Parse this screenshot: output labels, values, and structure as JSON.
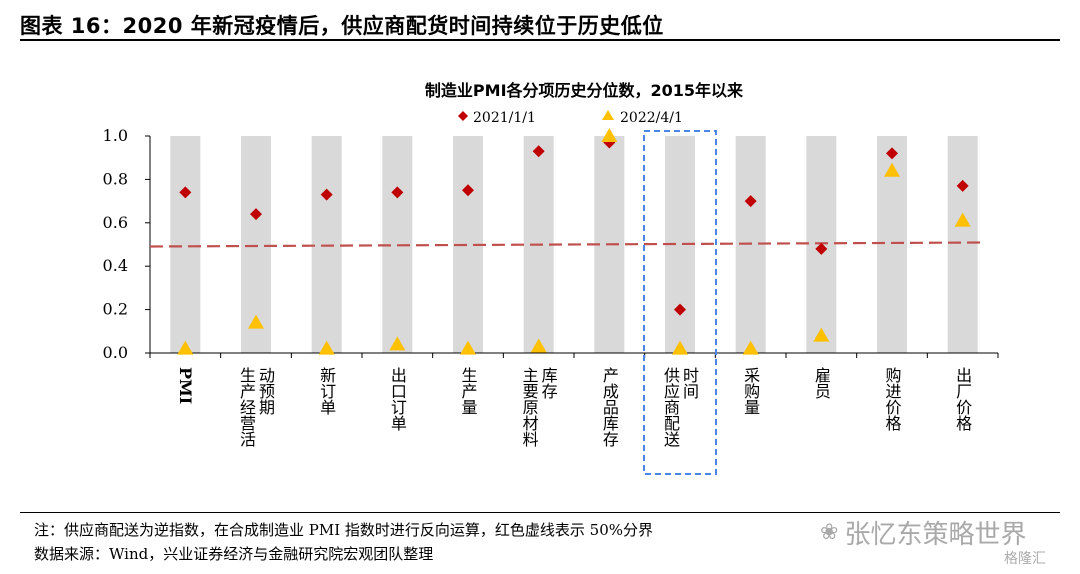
{
  "figure": {
    "title": "图表 16：2020 年新冠疫情后，供应商配货时间持续位于历史低位"
  },
  "notes": {
    "note": "注：供应商配送为逆指数，在合成制造业 PMI 指数时进行反向运算，红色虚线表示 50%分界",
    "source": "数据来源：Wind，兴业证券经济与金融研究院宏观团队整理"
  },
  "watermark": {
    "icon": "wechat-icon",
    "text": "张忆东策略世界",
    "text2": "格隆汇"
  },
  "chart_data": {
    "type": "scatter",
    "title": "制造业PMI各分项历史分位数，2015年以来",
    "ylim": [
      0,
      1
    ],
    "yticks": [
      "0.0",
      "0.2",
      "0.4",
      "0.6",
      "0.8",
      "1.0"
    ],
    "categories": [
      "PMI",
      "生产经营活动预期",
      "新订单",
      "出口订单",
      "生产量",
      "主要原材料库存",
      "产成品库存",
      "供应商配送时间",
      "采购量",
      "雇员",
      "购进价格",
      "出厂价格"
    ],
    "category_lines": [
      [
        "PMI"
      ],
      [
        "生产经营活",
        "动预期"
      ],
      [
        "新订单"
      ],
      [
        "出口订单"
      ],
      [
        "生产量"
      ],
      [
        "主要原材料",
        "库存"
      ],
      [
        "产成品库存"
      ],
      [
        "供应商配送",
        "时间"
      ],
      [
        "采购量"
      ],
      [
        "雇员"
      ],
      [
        "购进价格"
      ],
      [
        "出厂价格"
      ]
    ],
    "series": [
      {
        "name": "2021/1/1",
        "marker": "diamond",
        "color": "#C00000",
        "values": [
          0.74,
          0.64,
          0.73,
          0.74,
          0.75,
          0.93,
          0.97,
          0.2,
          0.7,
          0.48,
          0.92,
          0.77
        ]
      },
      {
        "name": "2022/4/1",
        "marker": "triangle",
        "color": "#FFC000",
        "values": [
          0.02,
          0.14,
          0.02,
          0.04,
          0.02,
          0.03,
          1.0,
          0.02,
          0.02,
          0.08,
          0.84,
          0.61
        ]
      }
    ],
    "reference_line": {
      "value": 0.5,
      "color": "#C0504D",
      "style": "dashed"
    },
    "highlight_category": "供应商配送时间",
    "bar_color": "#D9D9D9",
    "highlight_color": "#4A86E8",
    "legend_position": "top"
  }
}
